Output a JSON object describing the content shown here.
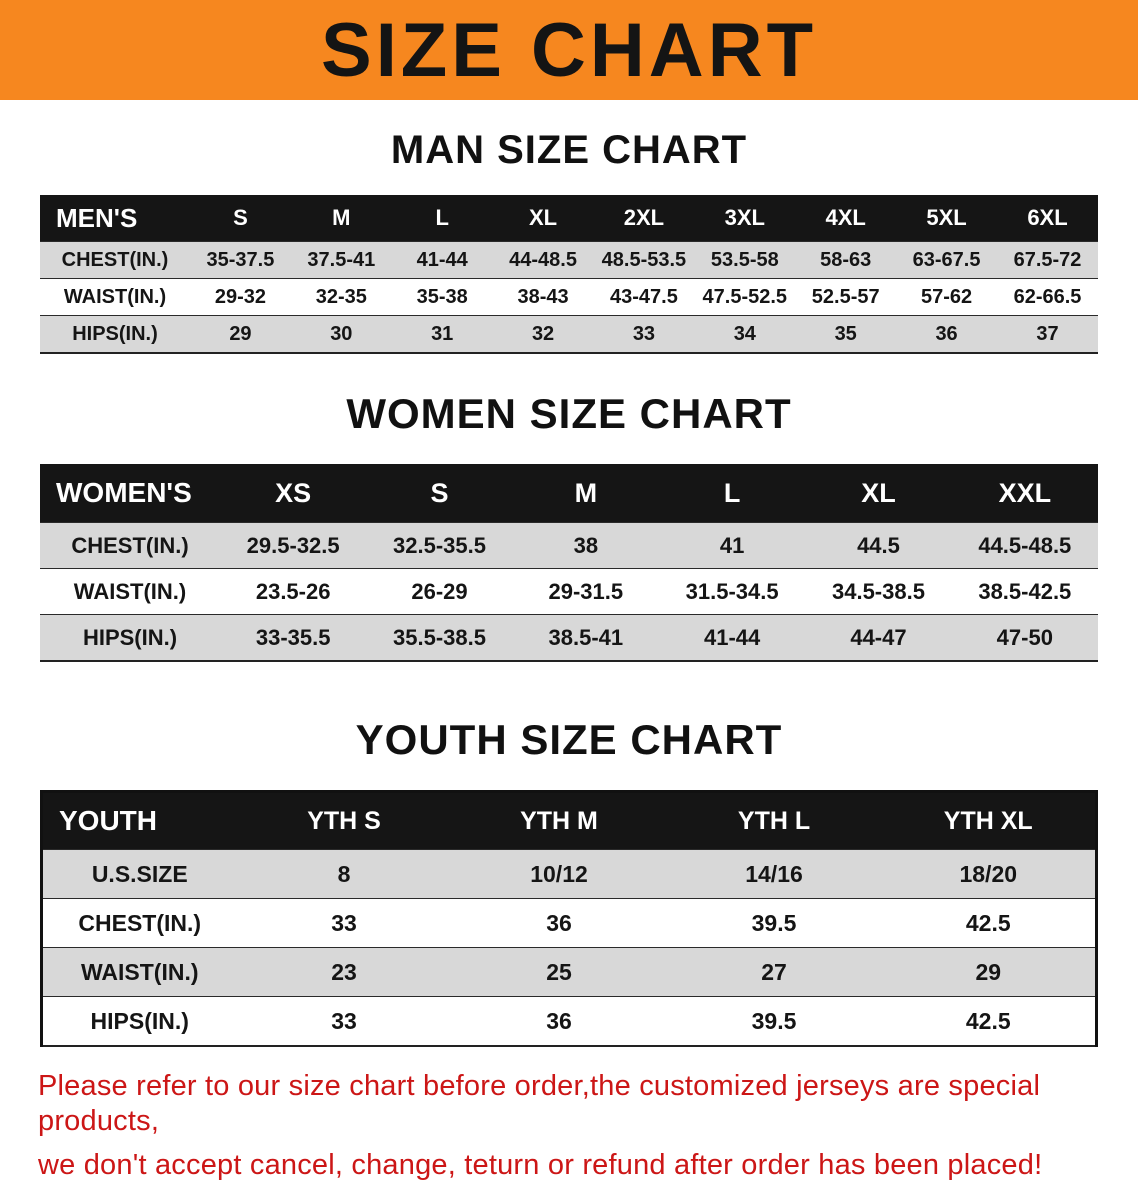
{
  "banner": {
    "title": "SIZE CHART"
  },
  "colors": {
    "banner_bg": "#f6871f",
    "table_header_bg": "#151515",
    "row_alt_bg": "#d8d8d8",
    "footer_text": "#cc1616"
  },
  "chart_data": [
    {
      "type": "table",
      "title": "MAN SIZE CHART",
      "columns": [
        "MEN'S",
        "S",
        "M",
        "L",
        "XL",
        "2XL",
        "3XL",
        "4XL",
        "5XL",
        "6XL"
      ],
      "rows": [
        [
          "CHEST(IN.)",
          "35-37.5",
          "37.5-41",
          "41-44",
          "44-48.5",
          "48.5-53.5",
          "53.5-58",
          "58-63",
          "63-67.5",
          "67.5-72"
        ],
        [
          "WAIST(IN.)",
          "29-32",
          "32-35",
          "35-38",
          "38-43",
          "43-47.5",
          "47.5-52.5",
          "52.5-57",
          "57-62",
          "62-66.5"
        ],
        [
          "HIPS(IN.)",
          "29",
          "30",
          "31",
          "32",
          "33",
          "34",
          "35",
          "36",
          "37"
        ]
      ]
    },
    {
      "type": "table",
      "title": "WOMEN SIZE CHART",
      "columns": [
        "WOMEN'S",
        "XS",
        "S",
        "M",
        "L",
        "XL",
        "XXL"
      ],
      "rows": [
        [
          "CHEST(IN.)",
          "29.5-32.5",
          "32.5-35.5",
          "38",
          "41",
          "44.5",
          "44.5-48.5"
        ],
        [
          "WAIST(IN.)",
          "23.5-26",
          "26-29",
          "29-31.5",
          "31.5-34.5",
          "34.5-38.5",
          "38.5-42.5"
        ],
        [
          "HIPS(IN.)",
          "33-35.5",
          "35.5-38.5",
          "38.5-41",
          "41-44",
          "44-47",
          "47-50"
        ]
      ]
    },
    {
      "type": "table",
      "title": "YOUTH SIZE CHART",
      "columns": [
        "YOUTH",
        "YTH S",
        "YTH M",
        "YTH L",
        "YTH XL"
      ],
      "rows": [
        [
          "U.S.SIZE",
          "8",
          "10/12",
          "14/16",
          "18/20"
        ],
        [
          "CHEST(IN.)",
          "33",
          "36",
          "39.5",
          "42.5"
        ],
        [
          "WAIST(IN.)",
          "23",
          "25",
          "27",
          "29"
        ],
        [
          "HIPS(IN.)",
          "33",
          "36",
          "39.5",
          "42.5"
        ]
      ]
    }
  ],
  "footer": {
    "line1": "Please refer to our size chart before order,the customized jerseys are special products,",
    "line2": "we don't accept cancel, change, teturn or refund after order has been placed!"
  }
}
